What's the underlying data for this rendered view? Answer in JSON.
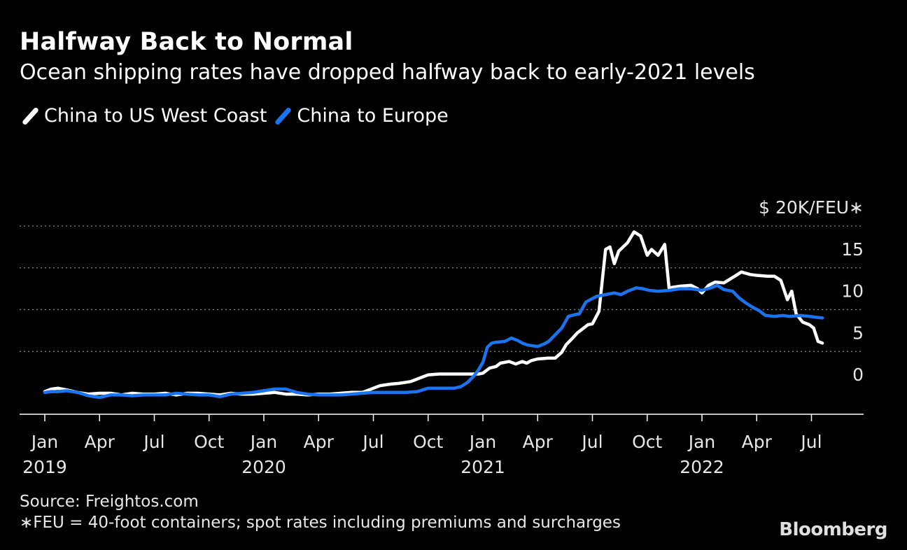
{
  "header": {
    "title": "Halfway Back to Normal",
    "subtitle": "Ocean shipping rates have dropped halfway back to early-2021 levels"
  },
  "footer": {
    "source": "Source: Freightos.com",
    "note": "∗FEU = 40-foot containers; spot rates including premiums and surcharges",
    "logo": "Bloomberg"
  },
  "chart_data": {
    "type": "line",
    "title": "Halfway Back to Normal",
    "subtitle": "Ocean shipping rates have dropped halfway back to early-2021 levels",
    "xlabel": "",
    "ylabel": "$20K/FEU∗",
    "unit_label": "$ 20K/FEU∗",
    "ylim": [
      -1.6,
      20
    ],
    "xlim": [
      2018.92,
      2022.62
    ],
    "y_ticks": [
      0,
      5,
      10,
      15,
      20
    ],
    "y_tick_labels": [
      "0",
      "5",
      "10",
      "15",
      "$ 20K/FEU∗"
    ],
    "x_ticks": [
      2019.0,
      2019.25,
      2019.5,
      2019.75,
      2020.0,
      2020.25,
      2020.5,
      2020.75,
      2021.0,
      2021.25,
      2021.5,
      2021.75,
      2022.0,
      2022.25,
      2022.5
    ],
    "x_tick_labels": [
      "Jan",
      "Apr",
      "Jul",
      "Oct",
      "Jan",
      "Apr",
      "Jul",
      "Oct",
      "Jan",
      "Apr",
      "Jul",
      "Oct",
      "Jan",
      "Apr",
      "Jul"
    ],
    "x_year_labels": [
      {
        "x": 2019.0,
        "label": "2019"
      },
      {
        "x": 2020.0,
        "label": "2020"
      },
      {
        "x": 2021.0,
        "label": "2021"
      },
      {
        "x": 2022.0,
        "label": "2022"
      }
    ],
    "grid": true,
    "legend_position": "top-left",
    "series": [
      {
        "name": "China to US West Coast",
        "color": "#ffffff",
        "points": [
          [
            2019.0,
            0.2
          ],
          [
            2019.03,
            0.5
          ],
          [
            2019.06,
            0.6
          ],
          [
            2019.1,
            0.4
          ],
          [
            2019.15,
            0.1
          ],
          [
            2019.2,
            -0.1
          ],
          [
            2019.25,
            0.0
          ],
          [
            2019.3,
            0.0
          ],
          [
            2019.35,
            -0.2
          ],
          [
            2019.4,
            0.0
          ],
          [
            2019.45,
            -0.1
          ],
          [
            2019.5,
            -0.1
          ],
          [
            2019.55,
            0.0
          ],
          [
            2019.6,
            -0.2
          ],
          [
            2019.65,
            0.0
          ],
          [
            2019.7,
            0.0
          ],
          [
            2019.75,
            -0.1
          ],
          [
            2019.8,
            -0.2
          ],
          [
            2019.85,
            0.0
          ],
          [
            2019.9,
            -0.1
          ],
          [
            2019.95,
            -0.1
          ],
          [
            2020.0,
            0.0
          ],
          [
            2020.05,
            0.1
          ],
          [
            2020.1,
            -0.1
          ],
          [
            2020.15,
            -0.1
          ],
          [
            2020.2,
            -0.2
          ],
          [
            2020.25,
            -0.1
          ],
          [
            2020.3,
            -0.1
          ],
          [
            2020.35,
            0.0
          ],
          [
            2020.4,
            0.1
          ],
          [
            2020.45,
            0.1
          ],
          [
            2020.5,
            0.6
          ],
          [
            2020.53,
            0.9
          ],
          [
            2020.58,
            1.1
          ],
          [
            2020.62,
            1.2
          ],
          [
            2020.67,
            1.4
          ],
          [
            2020.71,
            1.8
          ],
          [
            2020.75,
            2.2
          ],
          [
            2020.8,
            2.3
          ],
          [
            2020.9,
            2.3
          ],
          [
            2020.98,
            2.3
          ],
          [
            2021.0,
            2.4
          ],
          [
            2021.03,
            3.0
          ],
          [
            2021.06,
            3.2
          ],
          [
            2021.08,
            3.6
          ],
          [
            2021.12,
            3.8
          ],
          [
            2021.15,
            3.5
          ],
          [
            2021.18,
            3.8
          ],
          [
            2021.2,
            3.6
          ],
          [
            2021.22,
            3.9
          ],
          [
            2021.25,
            4.1
          ],
          [
            2021.3,
            4.2
          ],
          [
            2021.33,
            4.2
          ],
          [
            2021.36,
            4.9
          ],
          [
            2021.38,
            5.8
          ],
          [
            2021.41,
            6.6
          ],
          [
            2021.43,
            7.2
          ],
          [
            2021.46,
            7.8
          ],
          [
            2021.48,
            8.2
          ],
          [
            2021.5,
            8.3
          ],
          [
            2021.53,
            9.8
          ],
          [
            2021.56,
            17.2
          ],
          [
            2021.58,
            17.5
          ],
          [
            2021.6,
            15.5
          ],
          [
            2021.62,
            17.0
          ],
          [
            2021.66,
            18.0
          ],
          [
            2021.69,
            19.3
          ],
          [
            2021.72,
            18.8
          ],
          [
            2021.75,
            16.5
          ],
          [
            2021.77,
            17.2
          ],
          [
            2021.8,
            16.5
          ],
          [
            2021.83,
            17.8
          ],
          [
            2021.85,
            12.6
          ],
          [
            2021.9,
            12.8
          ],
          [
            2021.95,
            12.9
          ],
          [
            2021.98,
            12.5
          ],
          [
            2022.0,
            12.0
          ],
          [
            2022.03,
            12.9
          ],
          [
            2022.06,
            13.3
          ],
          [
            2022.1,
            13.2
          ],
          [
            2022.15,
            14.0
          ],
          [
            2022.18,
            14.5
          ],
          [
            2022.22,
            14.2
          ],
          [
            2022.25,
            14.1
          ],
          [
            2022.3,
            14.0
          ],
          [
            2022.33,
            14.0
          ],
          [
            2022.36,
            13.5
          ],
          [
            2022.39,
            11.2
          ],
          [
            2022.41,
            12.2
          ],
          [
            2022.43,
            9.5
          ],
          [
            2022.46,
            8.5
          ],
          [
            2022.49,
            8.2
          ],
          [
            2022.51,
            7.8
          ],
          [
            2022.53,
            6.2
          ],
          [
            2022.55,
            6.0
          ]
        ]
      },
      {
        "name": "China to Europe",
        "color": "#1a74f0",
        "points": [
          [
            2019.0,
            0.1
          ],
          [
            2019.03,
            0.2
          ],
          [
            2019.06,
            0.2
          ],
          [
            2019.1,
            0.3
          ],
          [
            2019.15,
            0.1
          ],
          [
            2019.2,
            -0.3
          ],
          [
            2019.25,
            -0.5
          ],
          [
            2019.3,
            -0.2
          ],
          [
            2019.35,
            -0.2
          ],
          [
            2019.4,
            -0.3
          ],
          [
            2019.45,
            -0.2
          ],
          [
            2019.5,
            -0.2
          ],
          [
            2019.55,
            -0.2
          ],
          [
            2019.6,
            0.0
          ],
          [
            2019.65,
            -0.1
          ],
          [
            2019.7,
            -0.2
          ],
          [
            2019.75,
            -0.2
          ],
          [
            2019.8,
            -0.4
          ],
          [
            2019.85,
            -0.1
          ],
          [
            2019.9,
            0.0
          ],
          [
            2019.95,
            0.1
          ],
          [
            2020.0,
            0.3
          ],
          [
            2020.05,
            0.5
          ],
          [
            2020.1,
            0.5
          ],
          [
            2020.15,
            0.1
          ],
          [
            2020.2,
            -0.1
          ],
          [
            2020.25,
            -0.2
          ],
          [
            2020.3,
            -0.2
          ],
          [
            2020.35,
            -0.2
          ],
          [
            2020.4,
            -0.1
          ],
          [
            2020.45,
            0.0
          ],
          [
            2020.5,
            0.1
          ],
          [
            2020.55,
            0.1
          ],
          [
            2020.6,
            0.1
          ],
          [
            2020.65,
            0.1
          ],
          [
            2020.7,
            0.2
          ],
          [
            2020.75,
            0.6
          ],
          [
            2020.8,
            0.6
          ],
          [
            2020.87,
            0.6
          ],
          [
            2020.9,
            0.8
          ],
          [
            2020.93,
            1.3
          ],
          [
            2020.96,
            2.1
          ],
          [
            2020.98,
            2.8
          ],
          [
            2021.0,
            3.7
          ],
          [
            2021.02,
            5.5
          ],
          [
            2021.04,
            6.0
          ],
          [
            2021.06,
            6.1
          ],
          [
            2021.1,
            6.2
          ],
          [
            2021.13,
            6.6
          ],
          [
            2021.16,
            6.3
          ],
          [
            2021.18,
            6.0
          ],
          [
            2021.2,
            5.8
          ],
          [
            2021.22,
            5.7
          ],
          [
            2021.25,
            5.6
          ],
          [
            2021.28,
            5.9
          ],
          [
            2021.3,
            6.2
          ],
          [
            2021.33,
            7.0
          ],
          [
            2021.36,
            7.8
          ],
          [
            2021.39,
            9.2
          ],
          [
            2021.42,
            9.4
          ],
          [
            2021.44,
            9.5
          ],
          [
            2021.47,
            10.9
          ],
          [
            2021.49,
            11.2
          ],
          [
            2021.52,
            11.6
          ],
          [
            2021.56,
            11.8
          ],
          [
            2021.6,
            12.0
          ],
          [
            2021.63,
            11.8
          ],
          [
            2021.66,
            12.2
          ],
          [
            2021.7,
            12.6
          ],
          [
            2021.73,
            12.5
          ],
          [
            2021.76,
            12.3
          ],
          [
            2021.8,
            12.2
          ],
          [
            2021.85,
            12.3
          ],
          [
            2021.9,
            12.5
          ],
          [
            2021.95,
            12.5
          ],
          [
            2022.0,
            12.3
          ],
          [
            2022.04,
            12.6
          ],
          [
            2022.07,
            12.9
          ],
          [
            2022.1,
            12.4
          ],
          [
            2022.14,
            12.2
          ],
          [
            2022.17,
            11.4
          ],
          [
            2022.2,
            10.8
          ],
          [
            2022.23,
            10.3
          ],
          [
            2022.26,
            9.9
          ],
          [
            2022.29,
            9.3
          ],
          [
            2022.33,
            9.2
          ],
          [
            2022.37,
            9.3
          ],
          [
            2022.4,
            9.2
          ],
          [
            2022.45,
            9.3
          ],
          [
            2022.49,
            9.2
          ],
          [
            2022.52,
            9.1
          ],
          [
            2022.55,
            9.0
          ]
        ]
      }
    ]
  }
}
